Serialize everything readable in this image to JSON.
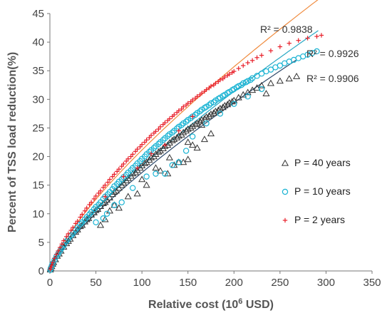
{
  "chart_data": {
    "type": "scatter",
    "xlabel": "Relative cost (10",
    "xlabel_sup": "6",
    "xlabel_end": " USD)",
    "ylabel": "Percent of TSS load reduction(%)",
    "xlim": [
      0,
      350
    ],
    "ylim": [
      0,
      45
    ],
    "x_ticks": [
      "0",
      "50",
      "100",
      "150",
      "200",
      "250",
      "300",
      "350"
    ],
    "y_ticks": [
      "0",
      "5",
      "10",
      "15",
      "20",
      "25",
      "30",
      "35",
      "40",
      "45"
    ],
    "grid": false,
    "legend_position": "right",
    "annotations": [
      "R² = 0.9838",
      "R² = 0.9926",
      "R² = 0.9906"
    ],
    "series": [
      {
        "name": "P = 40 years",
        "marker": "triangle-open",
        "color": "#333333",
        "r2": "R² = 0.9906",
        "trend": {
          "x_end": 270
        },
        "x": [
          0.5,
          1,
          2,
          3,
          4,
          6,
          8,
          10,
          12,
          15,
          18,
          20,
          22,
          25,
          28,
          30,
          33,
          35,
          38,
          40,
          42,
          45,
          48,
          50,
          52,
          55,
          58,
          60,
          62,
          65,
          68,
          70,
          72,
          75,
          78,
          80,
          83,
          85,
          88,
          90,
          93,
          95,
          98,
          100,
          103,
          105,
          108,
          110,
          113,
          115,
          118,
          120,
          123,
          125,
          128,
          130,
          133,
          135,
          138,
          140,
          143,
          145,
          148,
          150,
          153,
          155,
          158,
          160,
          163,
          165,
          168,
          170,
          173,
          175,
          178,
          180,
          183,
          185,
          188,
          190,
          193,
          195,
          198,
          200,
          205,
          210,
          215,
          220,
          225,
          230,
          235,
          240,
          250,
          260,
          268,
          55,
          65,
          75,
          95,
          105,
          120,
          128,
          135,
          140,
          145,
          150,
          155,
          160,
          168,
          175,
          60,
          70,
          85,
          100,
          115,
          130,
          150,
          165
        ],
        "y": [
          0.2,
          0.5,
          0.8,
          1.2,
          1.5,
          2.0,
          2.6,
          3.0,
          3.5,
          4.2,
          4.8,
          5.2,
          5.6,
          6.2,
          6.8,
          7.2,
          7.8,
          8.0,
          8.6,
          9.0,
          9.2,
          9.8,
          10.2,
          10.6,
          10.8,
          11.3,
          11.8,
          12.0,
          12.4,
          12.8,
          13.4,
          13.8,
          14.0,
          14.5,
          15.0,
          15.4,
          15.8,
          16.2,
          16.6,
          17.0,
          17.2,
          17.6,
          18.0,
          18.4,
          18.8,
          19.0,
          19.4,
          19.8,
          20.0,
          20.4,
          20.8,
          21.0,
          21.4,
          21.8,
          22.0,
          22.4,
          22.8,
          23.0,
          23.3,
          23.6,
          23.8,
          24.2,
          24.5,
          24.8,
          25.0,
          25.3,
          25.6,
          25.8,
          26.1,
          26.4,
          26.6,
          26.9,
          27.1,
          27.4,
          27.6,
          27.9,
          28.1,
          28.4,
          28.6,
          28.9,
          29.1,
          29.4,
          29.6,
          29.8,
          30.3,
          30.8,
          31.2,
          31.6,
          32.0,
          32.4,
          31.0,
          32.8,
          33.2,
          33.6,
          34.0,
          8.0,
          10.5,
          11.0,
          13.5,
          15.0,
          17.5,
          17.0,
          18.5,
          19.0,
          19.0,
          19.5,
          22.0,
          21.5,
          23.0,
          24.0,
          9.0,
          11.5,
          13.0,
          16.0,
          18.0,
          19.8,
          22.5,
          25.5
        ]
      },
      {
        "name": "P = 10 years",
        "marker": "circle-open",
        "color": "#19b3d3",
        "r2": "R² = 0.9926",
        "trend": {
          "x_end": 292
        },
        "x": [
          0.5,
          1,
          2,
          3,
          5,
          7,
          9,
          11,
          13,
          15,
          18,
          20,
          23,
          25,
          28,
          30,
          33,
          35,
          38,
          40,
          43,
          45,
          48,
          50,
          53,
          55,
          58,
          60,
          63,
          65,
          68,
          70,
          73,
          75,
          78,
          80,
          83,
          85,
          88,
          90,
          93,
          95,
          98,
          100,
          103,
          105,
          108,
          110,
          113,
          115,
          118,
          120,
          123,
          125,
          128,
          130,
          133,
          135,
          138,
          140,
          143,
          145,
          148,
          150,
          153,
          155,
          158,
          160,
          163,
          165,
          168,
          170,
          173,
          175,
          178,
          180,
          183,
          185,
          188,
          190,
          193,
          195,
          198,
          200,
          203,
          205,
          208,
          210,
          213,
          215,
          218,
          220,
          225,
          230,
          235,
          240,
          245,
          250,
          255,
          260,
          265,
          270,
          275,
          280,
          285,
          290,
          50,
          58,
          62,
          70,
          78,
          90,
          105,
          115,
          125,
          133,
          140,
          148,
          155,
          170,
          185,
          200,
          215,
          230
        ],
        "y": [
          0.2,
          0.5,
          0.9,
          1.3,
          1.9,
          2.5,
          3.0,
          3.5,
          4.0,
          4.5,
          5.2,
          5.6,
          6.2,
          6.6,
          7.2,
          7.6,
          8.2,
          8.5,
          9.0,
          9.4,
          9.9,
          10.3,
          10.8,
          11.2,
          11.6,
          12.0,
          12.6,
          13.0,
          13.4,
          13.8,
          14.3,
          14.8,
          15.2,
          15.6,
          16.0,
          16.4,
          16.8,
          17.2,
          17.6,
          18.0,
          18.4,
          18.8,
          19.2,
          19.6,
          20.0,
          20.4,
          20.8,
          21.1,
          21.5,
          21.8,
          22.2,
          22.5,
          22.9,
          23.2,
          23.6,
          23.9,
          24.2,
          24.5,
          24.9,
          25.2,
          25.5,
          25.8,
          26.1,
          26.4,
          26.7,
          27.0,
          27.3,
          27.6,
          27.9,
          28.2,
          28.5,
          28.7,
          29.0,
          29.3,
          29.5,
          29.8,
          30.1,
          30.3,
          30.6,
          30.8,
          31.1,
          31.3,
          31.6,
          31.8,
          32.1,
          32.3,
          32.5,
          32.8,
          33.0,
          33.2,
          33.4,
          33.7,
          34.1,
          34.5,
          34.9,
          35.2,
          35.6,
          35.9,
          36.3,
          36.6,
          36.9,
          37.2,
          37.5,
          37.8,
          38.1,
          38.4,
          8.5,
          9.2,
          10.0,
          11.5,
          12.0,
          14.5,
          16.5,
          17.0,
          17.0,
          18.5,
          19.0,
          21.0,
          23.5,
          25.8,
          27.5,
          29.2,
          30.5,
          31.8
        ]
      },
      {
        "name": "P = 2 years",
        "marker": "plus",
        "color": "#e8202a",
        "r2": "R² = 0.9838",
        "trend": {
          "x_end": 295
        },
        "x": [
          0.5,
          1,
          2,
          3,
          5,
          7,
          9,
          11,
          13,
          15,
          18,
          20,
          23,
          25,
          28,
          30,
          33,
          35,
          38,
          40,
          43,
          45,
          48,
          50,
          53,
          55,
          58,
          60,
          63,
          65,
          68,
          70,
          73,
          75,
          78,
          80,
          83,
          85,
          88,
          90,
          93,
          95,
          98,
          100,
          103,
          105,
          108,
          110,
          113,
          115,
          118,
          120,
          123,
          125,
          128,
          130,
          133,
          135,
          138,
          140,
          143,
          145,
          148,
          150,
          153,
          155,
          158,
          160,
          163,
          165,
          168,
          170,
          173,
          175,
          178,
          180,
          183,
          185,
          188,
          190,
          193,
          195,
          198,
          200,
          205,
          210,
          215,
          220,
          225,
          230,
          240,
          250,
          260,
          270,
          280,
          290,
          295,
          60,
          80,
          95,
          110,
          125,
          140,
          155
        ],
        "y": [
          0.3,
          0.6,
          1.0,
          1.5,
          2.2,
          2.9,
          3.5,
          4.1,
          4.7,
          5.3,
          6.0,
          6.5,
          7.1,
          7.6,
          8.3,
          8.7,
          9.4,
          9.9,
          10.5,
          11.0,
          11.6,
          12.0,
          12.6,
          13.1,
          13.6,
          14.0,
          14.6,
          15.0,
          15.5,
          16.0,
          16.5,
          16.9,
          17.4,
          17.8,
          18.3,
          18.7,
          19.2,
          19.6,
          20.0,
          20.4,
          20.9,
          21.3,
          21.7,
          22.1,
          22.5,
          22.9,
          23.3,
          23.7,
          24.1,
          24.4,
          24.8,
          25.2,
          25.6,
          25.9,
          26.3,
          26.6,
          27.0,
          27.3,
          27.7,
          28.0,
          28.3,
          28.7,
          29.0,
          29.3,
          29.6,
          29.9,
          30.2,
          30.5,
          30.8,
          31.1,
          31.4,
          31.7,
          32.0,
          32.3,
          32.5,
          32.8,
          33.1,
          33.4,
          33.6,
          33.9,
          34.2,
          34.4,
          34.7,
          34.9,
          35.4,
          35.9,
          36.4,
          36.8,
          37.3,
          37.7,
          38.5,
          39.2,
          39.8,
          40.3,
          40.7,
          41.0,
          41.2,
          13.0,
          16.5,
          18.0,
          20.5,
          22.0,
          24.5,
          27.0
        ]
      }
    ]
  }
}
